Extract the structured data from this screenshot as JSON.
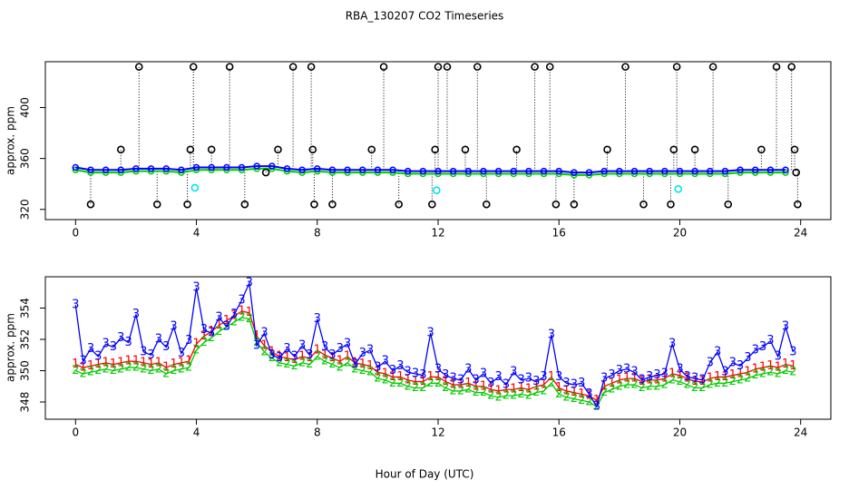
{
  "chart_data": [
    {
      "type": "scatter",
      "title": "RBA_130207  CO2 Timeseries",
      "ylabel": "approx. ppm",
      "xlim": [
        -1,
        25
      ],
      "xticks": [
        0,
        4,
        8,
        12,
        16,
        20,
        24
      ],
      "ylim": [
        312,
        436
      ],
      "yticks": [
        320,
        360,
        400
      ],
      "x": [
        0,
        0.5,
        1,
        1.5,
        2,
        2.5,
        3,
        3.5,
        4,
        4.5,
        5,
        5.5,
        6,
        6.5,
        7,
        7.5,
        8,
        8.5,
        9,
        9.5,
        10,
        10.5,
        11,
        11.5,
        12,
        12.5,
        13,
        13.5,
        14,
        14.5,
        15,
        15.5,
        16,
        16.5,
        17,
        17.5,
        18,
        18.5,
        19,
        19.5,
        20,
        20.5,
        21,
        21.5,
        22,
        22.5,
        23,
        23.5
      ],
      "series": [
        {
          "color": "#00cc00",
          "values": [
            351,
            349,
            349,
            349,
            350,
            350,
            350,
            349,
            351,
            351,
            351,
            351,
            352,
            352,
            350,
            349,
            350,
            349,
            349,
            349,
            349,
            349,
            348,
            348,
            348,
            348,
            348,
            348,
            348,
            348,
            348,
            348,
            348,
            347,
            347,
            348,
            348,
            348,
            348,
            348,
            348,
            348,
            348,
            348,
            349,
            349,
            349,
            349
          ]
        },
        {
          "color": "#0000ff",
          "values": [
            353,
            351,
            351,
            351,
            352,
            352,
            352,
            351,
            353,
            353,
            353,
            353,
            354,
            354,
            352,
            351,
            352,
            351,
            351,
            351,
            351,
            351,
            350,
            350,
            350,
            350,
            350,
            350,
            350,
            350,
            350,
            350,
            350,
            349,
            349,
            350,
            350,
            350,
            350,
            350,
            350,
            350,
            350,
            350,
            351,
            351,
            351,
            351
          ]
        }
      ],
      "outliers": {
        "color": "#000000",
        "x": [
          0.5,
          1.5,
          2.1,
          2.7,
          3.7,
          3.8,
          3.9,
          4.5,
          5.1,
          5.6,
          6.3,
          6.7,
          7.2,
          7.8,
          7.85,
          7.9,
          8.5,
          9.8,
          10.2,
          10.7,
          11.8,
          11.9,
          12,
          12.3,
          12.9,
          13.3,
          13.6,
          14.6,
          15.2,
          15.7,
          15.9,
          16.5,
          17.6,
          18.2,
          18.8,
          19.7,
          19.8,
          19.9,
          20.5,
          21.1,
          21.6,
          22.7,
          23.2,
          23.7,
          23.8,
          23.9,
          23.85
        ],
        "values": [
          324,
          367,
          432,
          324,
          324,
          367,
          432,
          367,
          432,
          324,
          349,
          367,
          432,
          432,
          367,
          324,
          324,
          367,
          432,
          324,
          324,
          367,
          432,
          432,
          367,
          432,
          324,
          367,
          432,
          432,
          324,
          324,
          367,
          432,
          324,
          324,
          367,
          432,
          367,
          432,
          324,
          367,
          432,
          432,
          367,
          324,
          349
        ]
      },
      "flagged": {
        "color": "#00e5ee",
        "x": [
          3.95,
          11.95,
          19.95
        ],
        "values": [
          337,
          335,
          336
        ]
      }
    },
    {
      "type": "line",
      "ylabel": "approx. ppm",
      "xlabel": "Hour of Day (UTC)",
      "xlim": [
        -1,
        25
      ],
      "xticks": [
        0,
        4,
        8,
        12,
        16,
        20,
        24
      ],
      "ylim": [
        346.9,
        356
      ],
      "yticks": [
        348,
        350,
        352,
        354
      ],
      "x": [
        0,
        0.25,
        0.5,
        0.75,
        1,
        1.25,
        1.5,
        1.75,
        2,
        2.25,
        2.5,
        2.75,
        3,
        3.25,
        3.5,
        3.75,
        4,
        4.25,
        4.5,
        4.75,
        5,
        5.25,
        5.5,
        5.75,
        6,
        6.25,
        6.5,
        6.75,
        7,
        7.25,
        7.5,
        7.75,
        8,
        8.25,
        8.5,
        8.75,
        9,
        9.25,
        9.5,
        9.75,
        10,
        10.25,
        10.5,
        10.75,
        11,
        11.25,
        11.5,
        11.75,
        12,
        12.25,
        12.5,
        12.75,
        13,
        13.25,
        13.5,
        13.75,
        14,
        14.25,
        14.5,
        14.75,
        15,
        15.25,
        15.5,
        15.75,
        16,
        16.25,
        16.5,
        16.75,
        17,
        17.25,
        17.5,
        17.75,
        18,
        18.25,
        18.5,
        18.75,
        19,
        19.25,
        19.5,
        19.75,
        20,
        20.25,
        20.5,
        20.75,
        21,
        21.25,
        21.5,
        21.75,
        22,
        22.25,
        22.5,
        22.75,
        23,
        23.25,
        23.5,
        23.75
      ],
      "series": [
        {
          "name": "1",
          "color": "#ff0000",
          "values": [
            350.4,
            350.2,
            350.3,
            350.4,
            350.5,
            350.4,
            350.5,
            350.6,
            350.6,
            350.5,
            350.4,
            350.5,
            350.2,
            350.4,
            350.5,
            350.6,
            351.7,
            352.2,
            352.5,
            352.9,
            353.2,
            353.5,
            353.8,
            353.7,
            352.2,
            351.6,
            351.2,
            350.9,
            350.8,
            350.7,
            350.9,
            350.8,
            351.3,
            351.0,
            350.8,
            350.6,
            350.9,
            350.5,
            350.4,
            350.3,
            349.9,
            349.8,
            349.6,
            349.6,
            349.4,
            349.3,
            349.3,
            349.6,
            349.6,
            349.3,
            349.1,
            349.1,
            349.2,
            349.0,
            349.0,
            348.8,
            348.7,
            348.8,
            348.8,
            348.9,
            348.8,
            349.0,
            349.1,
            349.6,
            348.9,
            348.7,
            348.6,
            348.5,
            348.4,
            348.1,
            349.0,
            349.2,
            349.4,
            349.5,
            349.5,
            349.3,
            349.4,
            349.4,
            349.5,
            349.8,
            349.7,
            349.5,
            349.3,
            349.3,
            349.5,
            349.6,
            349.6,
            349.7,
            349.8,
            349.9,
            350.1,
            350.2,
            350.3,
            350.2,
            350.4,
            350.3
          ]
        },
        {
          "name": "2",
          "color": "#00cc00",
          "values": [
            350.0,
            349.8,
            349.9,
            350.0,
            350.1,
            350.0,
            350.1,
            350.2,
            350.2,
            350.1,
            350.0,
            350.1,
            349.8,
            350.0,
            350.1,
            350.2,
            351.3,
            351.8,
            352.1,
            352.5,
            352.8,
            353.1,
            353.4,
            353.3,
            351.8,
            351.2,
            350.8,
            350.5,
            350.4,
            350.3,
            350.5,
            350.4,
            350.9,
            350.6,
            350.4,
            350.2,
            350.5,
            350.1,
            350.0,
            349.9,
            349.5,
            349.4,
            349.2,
            349.2,
            349.0,
            348.9,
            348.9,
            349.2,
            349.2,
            348.9,
            348.7,
            348.7,
            348.8,
            348.6,
            348.6,
            348.4,
            348.3,
            348.4,
            348.4,
            348.5,
            348.4,
            348.6,
            348.7,
            349.2,
            348.5,
            348.3,
            348.2,
            348.1,
            348.0,
            347.7,
            348.6,
            348.8,
            349.0,
            349.1,
            349.1,
            348.9,
            349.0,
            349.0,
            349.1,
            349.4,
            349.3,
            349.1,
            348.9,
            348.9,
            349.1,
            349.2,
            349.2,
            349.3,
            349.4,
            349.5,
            349.7,
            349.8,
            349.9,
            349.8,
            350.0,
            349.9
          ]
        },
        {
          "name": "3",
          "color": "#0000ff",
          "values": [
            354.2,
            350.6,
            351.4,
            350.9,
            351.7,
            351.5,
            352.1,
            351.8,
            353.6,
            351.2,
            351.0,
            352.0,
            351.5,
            352.8,
            351.1,
            351.9,
            355.3,
            352.6,
            352.4,
            353.4,
            352.8,
            353.6,
            354.5,
            355.6,
            351.6,
            352.4,
            351.0,
            350.8,
            351.4,
            350.9,
            351.6,
            351.0,
            353.3,
            351.5,
            351.0,
            351.4,
            351.7,
            350.4,
            351.1,
            351.3,
            350.2,
            350.6,
            350.0,
            350.3,
            349.9,
            349.8,
            349.7,
            352.4,
            350.1,
            349.7,
            349.5,
            349.4,
            350.1,
            349.4,
            349.8,
            349.2,
            349.6,
            349.1,
            349.9,
            349.4,
            349.5,
            349.3,
            349.6,
            352.3,
            349.6,
            349.2,
            349.1,
            349.2,
            348.5,
            347.7,
            349.5,
            349.7,
            350.0,
            350.1,
            349.9,
            349.4,
            349.6,
            349.7,
            349.8,
            351.7,
            350.1,
            349.6,
            349.5,
            349.4,
            350.5,
            351.2,
            349.9,
            350.5,
            350.3,
            350.8,
            351.3,
            351.5,
            351.9,
            350.9,
            352.8,
            351.2
          ]
        }
      ]
    }
  ]
}
